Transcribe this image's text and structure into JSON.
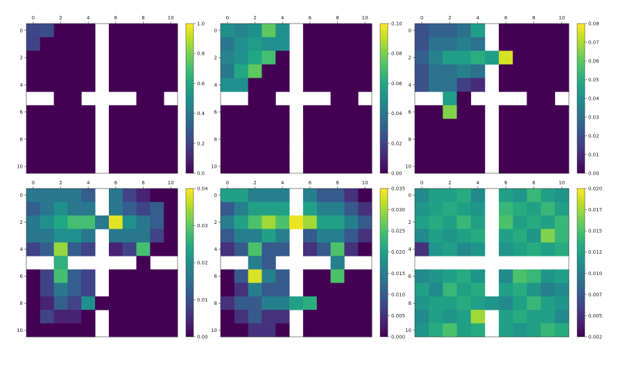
{
  "chart_data": [
    {
      "type": "heatmap",
      "title": "",
      "grid_size": 11,
      "blocked": {
        "row": 5,
        "col": 5,
        "openings_row": [
          1,
          8
        ],
        "openings_col": [
          1,
          8
        ],
        "open_cells_row": [
          2,
          3,
          7,
          8
        ],
        "open_cells_col": [
          2,
          3,
          7,
          8
        ]
      },
      "x_ticks": [
        "0",
        "2",
        "4",
        "6",
        "8",
        "10"
      ],
      "y_ticks": [
        "0",
        "2",
        "4",
        "6",
        "8",
        "10"
      ],
      "colorbar": {
        "min": 0.0,
        "max": 1.0,
        "ticks": [
          "0.0",
          "0.2",
          "0.4",
          "0.6",
          "0.8",
          "1.0"
        ]
      },
      "values": [
        [
          0.22,
          0.24,
          0,
          0,
          0,
          null,
          0,
          0,
          0,
          0,
          0
        ],
        [
          0.2,
          0,
          0,
          0,
          0,
          null,
          0,
          0,
          0,
          0,
          0
        ],
        [
          0,
          0,
          0,
          0,
          0,
          null,
          0,
          0,
          0,
          0,
          0
        ],
        [
          0,
          0,
          0,
          0,
          0,
          null,
          0,
          0,
          0,
          0,
          0
        ],
        [
          0,
          0,
          0,
          0,
          0,
          null,
          0,
          0,
          0,
          0,
          0
        ],
        [
          null,
          null,
          0,
          0,
          null,
          null,
          null,
          null,
          0,
          0,
          null
        ],
        [
          0,
          0,
          0,
          0,
          0,
          null,
          0,
          0,
          0,
          0,
          0
        ],
        [
          0,
          0,
          0,
          0,
          0,
          null,
          0,
          0,
          0,
          0,
          0
        ],
        [
          0,
          0,
          0,
          0,
          0,
          null,
          0,
          0,
          0,
          0,
          0
        ],
        [
          0,
          0,
          0,
          0,
          0,
          null,
          0,
          0,
          0,
          0,
          0
        ],
        [
          0,
          0,
          0,
          0,
          0,
          null,
          0,
          0,
          0,
          0,
          0
        ]
      ]
    },
    {
      "type": "heatmap",
      "title": "",
      "grid_size": 11,
      "x_ticks": [
        "0",
        "2",
        "4",
        "6",
        "8",
        "10"
      ],
      "y_ticks": [
        "0",
        "2",
        "4",
        "6",
        "8",
        "10"
      ],
      "colorbar": {
        "min": 0.0,
        "max": 0.1,
        "ticks": [
          "0.00",
          "0.02",
          "0.04",
          "0.06",
          "0.08",
          "0.10"
        ]
      },
      "values": [
        [
          0.05,
          0.045,
          0.05,
          0.075,
          0.05,
          null,
          0,
          0,
          0,
          0,
          0
        ],
        [
          0.04,
          0.05,
          0.055,
          0.05,
          0.05,
          null,
          0,
          0,
          0,
          0,
          0
        ],
        [
          0.045,
          0.05,
          0.06,
          0.07,
          0,
          null,
          0,
          0,
          0,
          0,
          0
        ],
        [
          0.04,
          0.06,
          0.075,
          0,
          0,
          null,
          0,
          0,
          0,
          0,
          0
        ],
        [
          0.05,
          0.05,
          0,
          0,
          0,
          null,
          0,
          0,
          0,
          0,
          0
        ],
        [
          null,
          null,
          0,
          0,
          null,
          null,
          null,
          null,
          0,
          0,
          null
        ],
        [
          0,
          0,
          0,
          0,
          0,
          null,
          0,
          0,
          0,
          0,
          0
        ],
        [
          0,
          0,
          0,
          0,
          0,
          null,
          0,
          0,
          0,
          0,
          0
        ],
        [
          0,
          0,
          0,
          0,
          0,
          null,
          0,
          0,
          0,
          0,
          0
        ],
        [
          0,
          0,
          0,
          0,
          0,
          null,
          0,
          0,
          0,
          0,
          0
        ],
        [
          0,
          0,
          0,
          0,
          0,
          null,
          0,
          0,
          0,
          0,
          0
        ]
      ]
    },
    {
      "type": "heatmap",
      "title": "",
      "grid_size": 11,
      "x_ticks": [
        "0",
        "2",
        "4",
        "6",
        "8",
        "10"
      ],
      "y_ticks": [
        "0",
        "2",
        "4",
        "6",
        "8",
        "10"
      ],
      "colorbar": {
        "min": 0.0,
        "max": 0.08,
        "ticks": [
          "0.00",
          "0.01",
          "0.02",
          "0.03",
          "0.04",
          "0.05",
          "0.06",
          "0.07",
          "0.08"
        ]
      },
      "values": [
        [
          0.02,
          0.025,
          0.025,
          0.03,
          0.045,
          null,
          0,
          0,
          0,
          0,
          0
        ],
        [
          0.02,
          0.03,
          0.03,
          0.035,
          0.03,
          null,
          0,
          0,
          0,
          0,
          0
        ],
        [
          0.025,
          0.035,
          0.045,
          0.045,
          0.05,
          0.045,
          0.075,
          0,
          0,
          0,
          0
        ],
        [
          0.02,
          0.03,
          0.03,
          0.035,
          0.03,
          null,
          0,
          0,
          0,
          0,
          0
        ],
        [
          0.02,
          0.03,
          0.03,
          0.015,
          0.01,
          null,
          0,
          0,
          0,
          0,
          0
        ],
        [
          null,
          null,
          0.045,
          0,
          null,
          null,
          null,
          null,
          0,
          0,
          null
        ],
        [
          0,
          0,
          0.065,
          0,
          0,
          null,
          0,
          0,
          0,
          0,
          0
        ],
        [
          0,
          0,
          0,
          0,
          0,
          null,
          0,
          0,
          0,
          0,
          0
        ],
        [
          0,
          0,
          0,
          0,
          0,
          null,
          0,
          0,
          0,
          0,
          0
        ],
        [
          0,
          0,
          0,
          0,
          0,
          null,
          0,
          0,
          0,
          0,
          0
        ],
        [
          0,
          0,
          0,
          0,
          0,
          null,
          0,
          0,
          0,
          0,
          0
        ]
      ]
    },
    {
      "type": "heatmap",
      "title": "",
      "grid_size": 11,
      "x_ticks": [
        "0",
        "2",
        "4",
        "6",
        "8",
        "10"
      ],
      "y_ticks": [
        "0",
        "2",
        "4",
        "6",
        "8",
        "10"
      ],
      "colorbar": {
        "min": 0.0,
        "max": 0.05,
        "ticks": [
          "0.00",
          "0.01",
          "0.02",
          "0.03",
          "0.04"
        ]
      },
      "values": [
        [
          0.02,
          0.02,
          0.02,
          0.02,
          0.015,
          null,
          0.02,
          0.01,
          0.005,
          0,
          0
        ],
        [
          0.015,
          0.02,
          0.025,
          0.02,
          0.02,
          null,
          0.02,
          0.015,
          0.01,
          0.015,
          0
        ],
        [
          0.02,
          0.025,
          0.03,
          0.035,
          0.035,
          0.02,
          0.048,
          0.025,
          0.02,
          0.015,
          0
        ],
        [
          0.02,
          0.02,
          0.025,
          0.025,
          0.02,
          null,
          0.02,
          0.02,
          0.02,
          0.01,
          0
        ],
        [
          0.01,
          0.015,
          0.042,
          0.015,
          0.01,
          null,
          0.005,
          0.01,
          0.035,
          0,
          0
        ],
        [
          null,
          null,
          0.032,
          null,
          null,
          null,
          null,
          null,
          0,
          null,
          null
        ],
        [
          0,
          0.01,
          0.035,
          0.015,
          0.01,
          null,
          0,
          0,
          0,
          0,
          0
        ],
        [
          0,
          0.01,
          0.02,
          0.015,
          0.01,
          null,
          0,
          0,
          0,
          0,
          0
        ],
        [
          0,
          0.005,
          0.015,
          0.01,
          0.025,
          0,
          0,
          0,
          0,
          0,
          0
        ],
        [
          0,
          0.01,
          0.005,
          0.005,
          0,
          null,
          0,
          0,
          0,
          0,
          0
        ],
        [
          0,
          0,
          0,
          0,
          0,
          null,
          0,
          0,
          0,
          0,
          0
        ]
      ]
    },
    {
      "type": "heatmap",
      "title": "",
      "grid_size": 11,
      "x_ticks": [
        "0",
        "2",
        "4",
        "6",
        "8",
        "10"
      ],
      "y_ticks": [
        "0",
        "2",
        "4",
        "6",
        "8",
        "10"
      ],
      "colorbar": {
        "min": 0.0,
        "max": 0.035,
        "ticks": [
          "0.000",
          "0.005",
          "0.010",
          "0.015",
          "0.020",
          "0.025",
          "0.030",
          "0.035"
        ]
      },
      "values": [
        [
          0.02,
          0.02,
          0.015,
          0.015,
          0.015,
          null,
          0.015,
          0.01,
          0.01,
          0.005,
          0
        ],
        [
          0.01,
          0.015,
          0.02,
          0.02,
          0.02,
          null,
          0.02,
          0.015,
          0.015,
          0.01,
          0.005
        ],
        [
          0.015,
          0.02,
          0.025,
          0.03,
          0.025,
          0.034,
          0.03,
          0.02,
          0.02,
          0.015,
          0.01
        ],
        [
          0.01,
          0.015,
          0.015,
          0.02,
          0.015,
          null,
          0.01,
          0.015,
          0.015,
          0.01,
          0.005
        ],
        [
          0.005,
          0.01,
          0.025,
          0.01,
          0.01,
          null,
          0.005,
          0.01,
          0.025,
          0.005,
          0
        ],
        [
          null,
          null,
          0.015,
          0.01,
          null,
          null,
          null,
          null,
          0.015,
          null,
          null
        ],
        [
          0,
          0.01,
          0.033,
          0.015,
          0.01,
          null,
          0,
          0,
          0.025,
          0,
          0
        ],
        [
          0,
          0.005,
          0.015,
          0.01,
          0.01,
          null,
          0,
          0,
          0,
          0,
          0
        ],
        [
          0.005,
          0.01,
          0.01,
          0.015,
          0.015,
          0.02,
          0.022,
          0,
          0,
          0,
          0
        ],
        [
          0,
          0.005,
          0.01,
          0.005,
          0.005,
          null,
          0,
          0,
          0,
          0,
          0
        ],
        [
          0,
          0,
          0.005,
          0.005,
          0,
          null,
          0,
          0,
          0,
          0,
          0
        ]
      ]
    },
    {
      "type": "heatmap",
      "title": "",
      "grid_size": 11,
      "x_ticks": [
        "0",
        "2",
        "4",
        "6",
        "8",
        "10"
      ],
      "y_ticks": [
        "0",
        "2",
        "4",
        "6",
        "8",
        "10"
      ],
      "colorbar": {
        "min": 0.0,
        "max": 0.021,
        "ticks": [
          "0.002",
          "0.005",
          "0.007",
          "0.010",
          "0.012",
          "0.015",
          "0.017",
          "0.020"
        ]
      },
      "values": [
        [
          0.01,
          0.012,
          0.012,
          0.013,
          0.01,
          null,
          0.012,
          0.011,
          0.014,
          0.012,
          0.011
        ],
        [
          0.011,
          0.012,
          0.013,
          0.012,
          0.011,
          null,
          0.014,
          0.013,
          0.012,
          0.014,
          0.012
        ],
        [
          0.012,
          0.013,
          0.012,
          0.014,
          0.012,
          null,
          0.015,
          0.012,
          0.013,
          0.012,
          0.014
        ],
        [
          0.01,
          0.012,
          0.011,
          0.012,
          0.013,
          null,
          0.012,
          0.013,
          0.011,
          0.017,
          0.014
        ],
        [
          0.003,
          0.011,
          0.012,
          0.01,
          0.011,
          null,
          0.011,
          0.012,
          0.013,
          0.012,
          0.013
        ],
        [
          null,
          null,
          null,
          null,
          null,
          null,
          null,
          null,
          null,
          null,
          null
        ],
        [
          0.01,
          0.011,
          0.012,
          0.013,
          0.011,
          null,
          0.01,
          0.015,
          0.014,
          0.011,
          0.012
        ],
        [
          0.012,
          0.01,
          0.014,
          0.012,
          0.013,
          null,
          0.012,
          0.013,
          0.011,
          0.009,
          0.01
        ],
        [
          0.011,
          0.012,
          0.012,
          0.013,
          0.012,
          0.011,
          0.01,
          0.012,
          0.014,
          0.012,
          0.011
        ],
        [
          0.01,
          0.012,
          0.011,
          0.012,
          0.018,
          null,
          0.012,
          0.013,
          0.012,
          0.012,
          0.01
        ],
        [
          0.011,
          0.013,
          0.015,
          0.012,
          0.013,
          null,
          0.012,
          0.011,
          0.012,
          0.014,
          0.013
        ]
      ]
    }
  ]
}
